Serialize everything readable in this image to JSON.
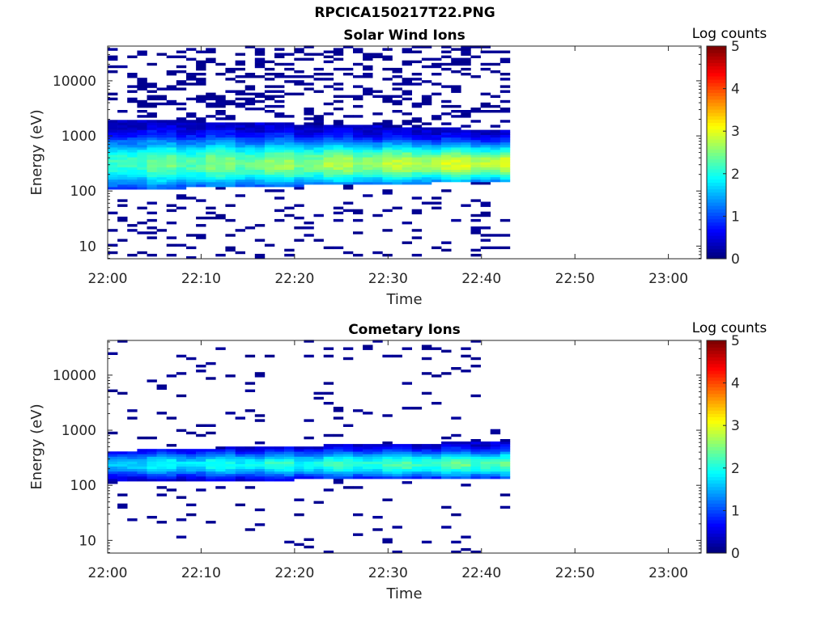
{
  "figure_title": "RPCICA150217T22.PNG",
  "colormap": [
    "#00007f",
    "#0000ff",
    "#007fff",
    "#00ffff",
    "#7fff7f",
    "#ffff00",
    "#ff7f00",
    "#ff0000",
    "#7f0000"
  ],
  "chart_data": [
    {
      "type": "heatmap",
      "title": "Solar Wind Ions",
      "xlabel": "Time",
      "ylabel": "Energy (eV)",
      "colorbar_label": "Log counts",
      "x_ticks": [
        "22:00",
        "22:10",
        "22:20",
        "22:30",
        "22:40",
        "22:50",
        "23:00"
      ],
      "y_ticks": [
        "10",
        "100",
        "1000",
        "10000"
      ],
      "colorbar_ticks": [
        "0",
        "1",
        "2",
        "3",
        "4",
        "5"
      ],
      "x_range_minutes": [
        0,
        63.5
      ],
      "y_range_log10": [
        0.77,
        4.63
      ],
      "c_range": [
        0,
        5
      ],
      "y_scale": "log",
      "data_end_minutes": 43,
      "core_band": {
        "low_eV_start": 100,
        "low_eV_end": 140,
        "high_eV_start": 1900,
        "high_eV_end": 1200,
        "peak_eV": 300,
        "peak_log_counts_start": 2.2,
        "peak_log_counts_end": 2.9
      },
      "sparse_counts": "high"
    },
    {
      "type": "heatmap",
      "title": "Cometary Ions",
      "xlabel": "Time",
      "ylabel": "Energy (eV)",
      "colorbar_label": "Log counts",
      "x_ticks": [
        "22:00",
        "22:10",
        "22:20",
        "22:30",
        "22:40",
        "22:50",
        "23:00"
      ],
      "y_ticks": [
        "10",
        "100",
        "1000",
        "10000"
      ],
      "colorbar_ticks": [
        "0",
        "1",
        "2",
        "3",
        "4",
        "5"
      ],
      "x_range_minutes": [
        0,
        63.5
      ],
      "y_range_log10": [
        0.77,
        4.63
      ],
      "c_range": [
        0,
        5
      ],
      "y_scale": "log",
      "data_end_minutes": 43,
      "core_band": {
        "low_eV_start": 110,
        "low_eV_end": 130,
        "high_eV_start": 400,
        "high_eV_end": 600,
        "peak_eV": 230,
        "peak_log_counts_start": 1.7,
        "peak_log_counts_end": 2.3
      },
      "sparse_counts": "low"
    }
  ]
}
